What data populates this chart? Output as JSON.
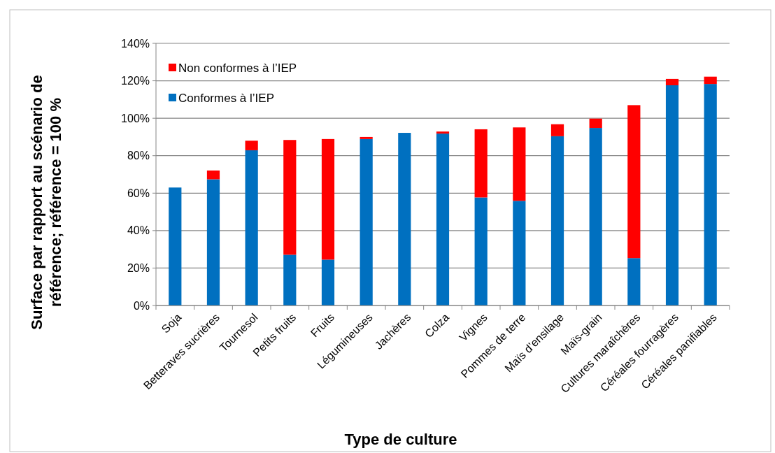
{
  "chart_data": {
    "type": "bar",
    "stacked": true,
    "xlabel": "Type de culture",
    "ylabel": "Surface par rapport au scénario de référence; référence = 100 %",
    "categories": [
      "Soja",
      "Betteraves sucrières",
      "Tournesol",
      "Petits fruits",
      "Fruits",
      "Légumineuses",
      "Jachères",
      "Colza",
      "Vignes",
      "Pommes de terre",
      "Maïs d’ensilage",
      "Maïs-grain",
      "Cultures maraîchères",
      "Céréales fourragères",
      "Céréales panifiables"
    ],
    "series": [
      {
        "name": "Conformes à l’IEP",
        "color": "#0070c0",
        "values": [
          63,
          67.4,
          82.9,
          27.1,
          24.5,
          88.9,
          92.2,
          91.8,
          57.7,
          55.9,
          90.4,
          94.8,
          25.3,
          117.6,
          118.3
        ]
      },
      {
        "name": "Non conformes à l’IEP",
        "color": "#ff0000",
        "values": [
          0,
          4.7,
          5.1,
          61.3,
          64.4,
          1.1,
          0,
          1.1,
          36.4,
          39.2,
          6.4,
          5,
          81.7,
          3.4,
          3.9
        ]
      }
    ],
    "ylim": [
      0,
      140
    ],
    "yticks": [
      {
        "value": 0,
        "label": "0%"
      },
      {
        "value": 20,
        "label": "20%"
      },
      {
        "value": 40,
        "label": "40%"
      },
      {
        "value": 60,
        "label": "60%"
      },
      {
        "value": 80,
        "label": "80%"
      },
      {
        "value": 100,
        "label": "100%"
      },
      {
        "value": 120,
        "label": "120%"
      },
      {
        "value": 140,
        "label": "140%"
      }
    ],
    "grid": "y",
    "legend": "top left"
  }
}
